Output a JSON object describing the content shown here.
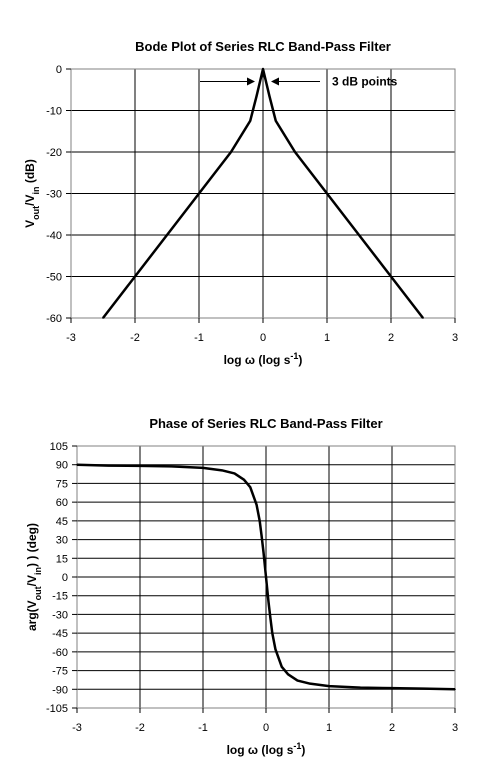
{
  "chart_data": [
    {
      "type": "line",
      "title": "Bode Plot of Series RLC Band-Pass Filter",
      "xlabel": {
        "prefix": "log ω (log s",
        "sup": "-1",
        "suffix": ")"
      },
      "ylabel": {
        "parts": [
          [
            "V",
            ""
          ],
          [
            "out",
            "sub"
          ],
          [
            "/V",
            ""
          ],
          [
            "in",
            "sub"
          ],
          [
            " (dB)",
            ""
          ]
        ]
      },
      "xlim": [
        -3,
        3
      ],
      "ylim": [
        -60,
        0
      ],
      "xticks": [
        -3,
        -2,
        -1,
        0,
        1,
        2,
        3
      ],
      "yticks": [
        0,
        -10,
        -20,
        -30,
        -40,
        -50,
        -60
      ],
      "grid": true,
      "annotation": "3 dB points",
      "series": [
        {
          "x": [
            -2.5,
            -2.0,
            -1.5,
            -1.0,
            -0.5,
            -0.2,
            -0.1,
            0.0,
            0.1,
            0.2,
            0.5,
            1.0,
            1.5,
            2.0,
            2.5
          ],
          "y": [
            -60,
            -50,
            -40,
            -30,
            -20,
            -12.5,
            -6.5,
            0,
            -6.5,
            -12.5,
            -20,
            -30,
            -40,
            -50,
            -60
          ]
        }
      ]
    },
    {
      "type": "line",
      "title": "Phase of Series RLC Band-Pass Filter",
      "xlabel": {
        "prefix": "log ω (log s",
        "sup": "-1",
        "suffix": ")"
      },
      "ylabel": {
        "parts": [
          [
            "arg(V",
            ""
          ],
          [
            "out",
            "sub"
          ],
          [
            "/V",
            ""
          ],
          [
            "in",
            "sub"
          ],
          [
            ") ) (deg)",
            ""
          ]
        ]
      },
      "xlim": [
        -3,
        3
      ],
      "ylim": [
        -105,
        105
      ],
      "xticks": [
        -3,
        -2,
        -1,
        0,
        1,
        2,
        3
      ],
      "yticks": [
        105,
        90,
        75,
        60,
        45,
        30,
        15,
        0,
        -15,
        -30,
        -45,
        -60,
        -75,
        -90,
        -105
      ],
      "grid": true,
      "series": [
        {
          "x": [
            -3.0,
            -2.5,
            -2.0,
            -1.5,
            -1.0,
            -0.7,
            -0.5,
            -0.35,
            -0.25,
            -0.15,
            -0.1,
            -0.07,
            -0.04,
            -0.02,
            0.0,
            0.02,
            0.04,
            0.07,
            0.1,
            0.15,
            0.25,
            0.35,
            0.5,
            0.7,
            1.0,
            1.5,
            2.0,
            2.5,
            3.0
          ],
          "y": [
            90,
            89.3,
            89.1,
            88.7,
            87.5,
            85.5,
            83.0,
            78.0,
            72.0,
            58.0,
            45.0,
            33.0,
            20.0,
            10.0,
            0,
            -10.0,
            -20.0,
            -33.0,
            -45.0,
            -58.0,
            -72.0,
            -78.0,
            -83.0,
            -85.5,
            -87.5,
            -88.7,
            -89.1,
            -89.5,
            -90
          ]
        }
      ]
    }
  ]
}
